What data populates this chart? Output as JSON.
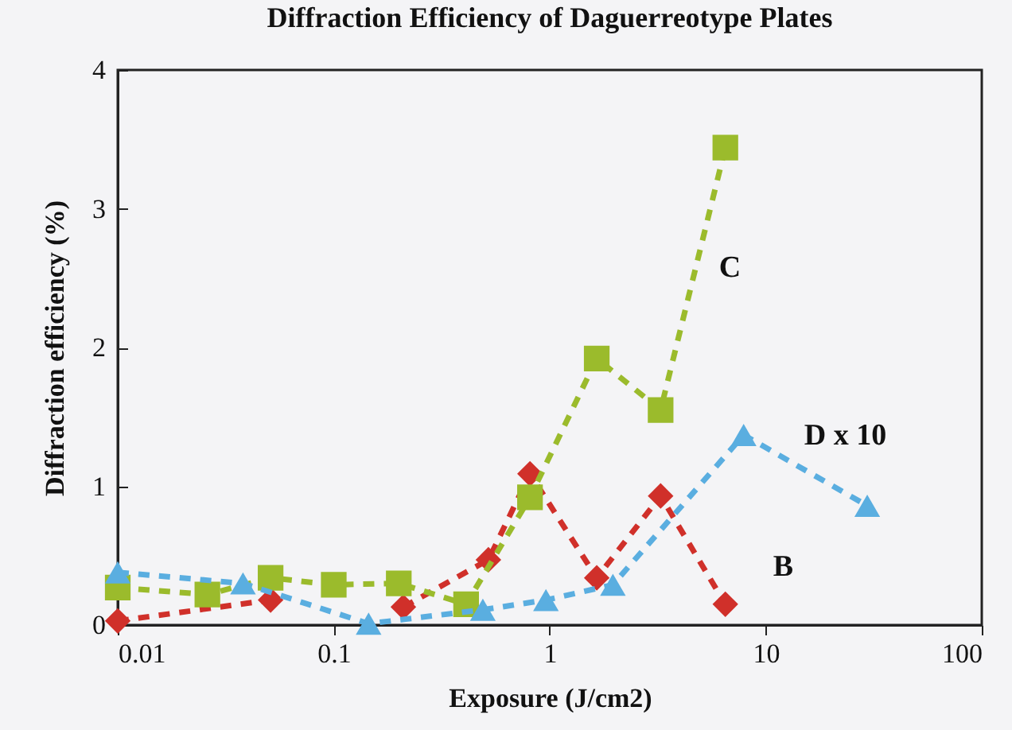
{
  "chart_data": {
    "type": "line",
    "title": "Diffraction Efficiency of Daguerreotype Plates",
    "xlabel": "Exposure (J/cm2)",
    "ylabel": "Diffraction efficiency (%)",
    "log": "x",
    "xlim": [
      0.01,
      100
    ],
    "xticks": [
      0.01,
      0.1,
      1,
      10,
      100
    ],
    "ylim": [
      0,
      4
    ],
    "yticks": [
      0,
      1,
      2,
      3,
      4
    ],
    "grid": false,
    "line_style": "dashed",
    "series": [
      {
        "name": "B",
        "color": "#d0302a",
        "marker": "diamond",
        "x": [
          0.01,
          0.051,
          0.1,
          0.21,
          0.52,
          0.81,
          1.65,
          3.26,
          6.5
        ],
        "values": [
          0.03,
          0.18,
          null,
          0.13,
          0.47,
          1.09,
          0.34,
          0.93,
          0.15
        ]
      },
      {
        "name": "C",
        "color": "#9bbb2c",
        "marker": "square",
        "x": [
          0.01,
          0.026,
          0.051,
          0.1,
          0.2,
          0.41,
          0.81,
          1.65,
          3.26,
          6.5
        ],
        "values": [
          0.27,
          0.22,
          0.34,
          0.29,
          0.3,
          0.15,
          0.92,
          1.92,
          1.55,
          3.44
        ]
      },
      {
        "name": "D x 10",
        "color": "#5aaee0",
        "marker": "triangle",
        "x": [
          0.01,
          0.038,
          0.145,
          0.49,
          0.96,
          1.96,
          7.9,
          29.5
        ],
        "values": [
          0.38,
          0.3,
          0.01,
          0.11,
          0.18,
          0.29,
          1.37,
          0.86
        ]
      }
    ]
  }
}
